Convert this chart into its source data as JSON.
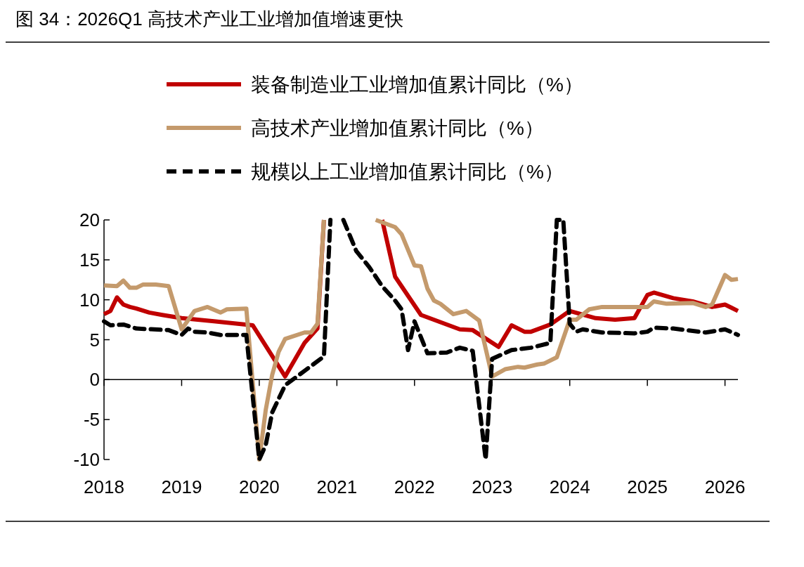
{
  "chart_data": {
    "type": "line",
    "title": "图 34：2026Q1 高技术产业工业增加值增速更快",
    "xlim": [
      "2018-01",
      "2026-03"
    ],
    "xticks": [
      {
        "value": "2018-01",
        "label": "2018"
      },
      {
        "value": "2019-01",
        "label": "2019"
      },
      {
        "value": "2020-01",
        "label": "2020"
      },
      {
        "value": "2021-01",
        "label": "2021"
      },
      {
        "value": "2022-01",
        "label": "2022"
      },
      {
        "value": "2023-01",
        "label": "2023"
      },
      {
        "value": "2024-01",
        "label": "2024"
      },
      {
        "value": "2025-01",
        "label": "2025"
      },
      {
        "value": "2026-01",
        "label": "2026"
      }
    ],
    "ylim": [
      -10,
      20
    ],
    "yticks": [
      -10,
      -5,
      0,
      5,
      10,
      15,
      20
    ],
    "legend": "top",
    "series": [
      {
        "name": "装备制造业工业增加值累计同比（%）",
        "color": "#c00000",
        "line_style": "solid",
        "x": [
          "2018-01",
          "2018-02",
          "2018-03",
          "2018-04",
          "2018-05",
          "2018-06",
          "2018-08",
          "2018-10",
          "2019-01",
          "2019-06",
          "2019-12",
          "2020-05",
          "2020-08",
          "2020-10",
          "2020-11",
          "2020-12",
          "2021-08",
          "2021-10",
          "2022-02",
          "2022-08",
          "2022-10",
          "2023-02",
          "2023-04",
          "2023-06",
          "2023-07",
          "2023-10",
          "2024-01",
          "2024-05",
          "2024-08",
          "2024-11",
          "2025-01",
          "2025-02",
          "2025-05",
          "2025-08",
          "2025-11",
          "2026-01",
          "2026-02",
          "2026-03"
        ],
        "values": [
          8.2,
          8.6,
          10.3,
          9.4,
          9.1,
          8.9,
          8.4,
          8.1,
          7.7,
          7.3,
          6.8,
          0.4,
          4.6,
          6.4,
          20,
          null,
          20,
          12.9,
          8.1,
          6.3,
          6.2,
          4.1,
          6.8,
          6.0,
          6.0,
          6.9,
          8.6,
          7.7,
          7.5,
          7.7,
          10.6,
          10.9,
          10.2,
          9.8,
          9.1,
          9.4,
          9.0,
          8.6
        ]
      },
      {
        "name": "高技术产业增加值累计同比（%）",
        "color": "#c49a6c",
        "line_style": "solid",
        "x": [
          "2018-01",
          "2018-03",
          "2018-04",
          "2018-05",
          "2018-06",
          "2018-07",
          "2018-09",
          "2018-11",
          "2019-01",
          "2019-03",
          "2019-05",
          "2019-07",
          "2019-08",
          "2019-11",
          "2020-01",
          "2020-02",
          "2020-03",
          "2020-04",
          "2020-05",
          "2020-08",
          "2020-09",
          "2020-10",
          "2020-11",
          "2020-12",
          "2021-07",
          "2021-10",
          "2021-11",
          "2022-01",
          "2022-02",
          "2022-03",
          "2022-04",
          "2022-05",
          "2022-07",
          "2022-09",
          "2022-11",
          "2023-01",
          "2023-03",
          "2023-05",
          "2023-06",
          "2023-08",
          "2023-09",
          "2023-11",
          "2024-01",
          "2024-02",
          "2024-04",
          "2024-06",
          "2024-08",
          "2024-11",
          "2025-01",
          "2025-02",
          "2025-04",
          "2025-08",
          "2025-10",
          "2025-11",
          "2026-01",
          "2026-02",
          "2026-03"
        ],
        "values": [
          11.8,
          11.7,
          12.4,
          11.5,
          11.5,
          11.9,
          11.9,
          11.7,
          6.3,
          8.6,
          9.1,
          8.4,
          8.8,
          8.9,
          -10,
          -3.8,
          0.6,
          3.5,
          5.1,
          5.9,
          5.9,
          7.0,
          20,
          null,
          20,
          19.1,
          18.2,
          14.3,
          14.2,
          11.4,
          9.9,
          9.5,
          8.2,
          8.6,
          7.4,
          0.4,
          1.3,
          1.6,
          1.5,
          1.9,
          2.0,
          2.8,
          7.5,
          7.5,
          8.8,
          9.1,
          9.1,
          9.1,
          9.1,
          9.8,
          9.5,
          9.6,
          9.1,
          9.4,
          13.1,
          12.5,
          12.6
        ]
      },
      {
        "name": "规模以上工业增加值累计同比（%）",
        "color": "#000000",
        "line_style": "dashed",
        "x": [
          "2018-01",
          "2018-02",
          "2018-04",
          "2018-06",
          "2018-11",
          "2019-01",
          "2019-02",
          "2019-03",
          "2019-05",
          "2019-07",
          "2019-11",
          "2020-01",
          "2020-02",
          "2020-03",
          "2020-05",
          "2020-08",
          "2020-11",
          "2020-12",
          "2021-01",
          "2021-02",
          "2021-04",
          "2021-06",
          "2021-08",
          "2021-10",
          "2021-11",
          "2021-12",
          "2022-01",
          "2022-03",
          "2022-06",
          "2022-08",
          "2022-10",
          "2022-12",
          "2023-01",
          "2023-04",
          "2023-07",
          "2023-10",
          "2023-11",
          "2023-12",
          "2024-01",
          "2024-02",
          "2024-03",
          "2024-06",
          "2024-11",
          "2025-01",
          "2025-02",
          "2025-05",
          "2025-07",
          "2025-10",
          "2026-01",
          "2026-03"
        ],
        "values": [
          7.3,
          6.8,
          6.9,
          6.4,
          6.2,
          5.6,
          6.4,
          6.0,
          5.9,
          5.6,
          5.6,
          -10,
          -8.2,
          -4.1,
          -0.7,
          1.1,
          2.9,
          20,
          null,
          20,
          16.1,
          14.1,
          11.7,
          9.9,
          8.8,
          3.7,
          7.3,
          3.3,
          3.4,
          4.0,
          3.6,
          -10,
          2.6,
          3.7,
          4.0,
          4.6,
          20,
          20,
          7.0,
          6.0,
          6.3,
          5.9,
          5.8,
          6.0,
          6.5,
          6.4,
          6.2,
          5.9,
          6.3,
          5.6
        ]
      }
    ]
  }
}
